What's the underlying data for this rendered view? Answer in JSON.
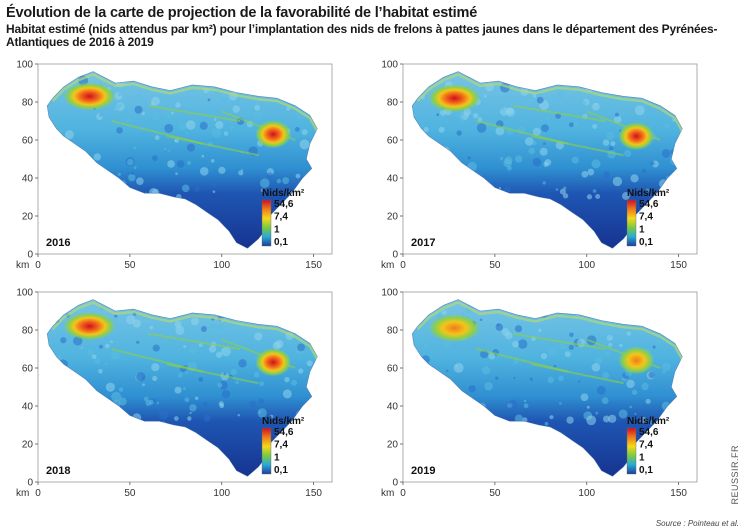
{
  "figure": {
    "title": "Évolution de la carte de projection de la favorabilité de l’habitat estimé",
    "subtitle": "Habitat estimé (nids attendus par km²) pour l’implantation des nids de frelons à pattes jaunes dans le département des Pyrénées-Atlantiques de 2016 à 2019",
    "source": "Source : Pointeau et al.",
    "brand": "REUSSIR.FR"
  },
  "chart_data": {
    "type": "heatmap",
    "x_unit": "km",
    "xlim": [
      0,
      160
    ],
    "ylim": [
      0,
      100
    ],
    "x_ticks": [
      0,
      50,
      100,
      150
    ],
    "y_ticks": [
      0,
      20,
      40,
      60,
      80,
      100
    ],
    "legend": {
      "title": "Nids/km²",
      "labels": [
        "54,6",
        "7,4",
        "1",
        "0,1"
      ],
      "colors": [
        "#c8102e",
        "#f07c1a",
        "#f4d81c",
        "#7ac943",
        "#29a9d6",
        "#1f3c99"
      ]
    },
    "panels": [
      {
        "year": "2016",
        "hotspots": [
          {
            "x": 28,
            "y": 83,
            "level": "54,6"
          },
          {
            "x": 128,
            "y": 63,
            "level": "54,6"
          }
        ]
      },
      {
        "year": "2017",
        "hotspots": [
          {
            "x": 28,
            "y": 82,
            "level": "54,6"
          },
          {
            "x": 127,
            "y": 62,
            "level": "54,6"
          }
        ]
      },
      {
        "year": "2018",
        "hotspots": [
          {
            "x": 28,
            "y": 82,
            "level": "54,6"
          },
          {
            "x": 128,
            "y": 63,
            "level": "54,6"
          }
        ]
      },
      {
        "year": "2019",
        "hotspots": [
          {
            "x": 28,
            "y": 81,
            "level": "7,4"
          },
          {
            "x": 127,
            "y": 64,
            "level": "7,4"
          }
        ]
      }
    ]
  }
}
